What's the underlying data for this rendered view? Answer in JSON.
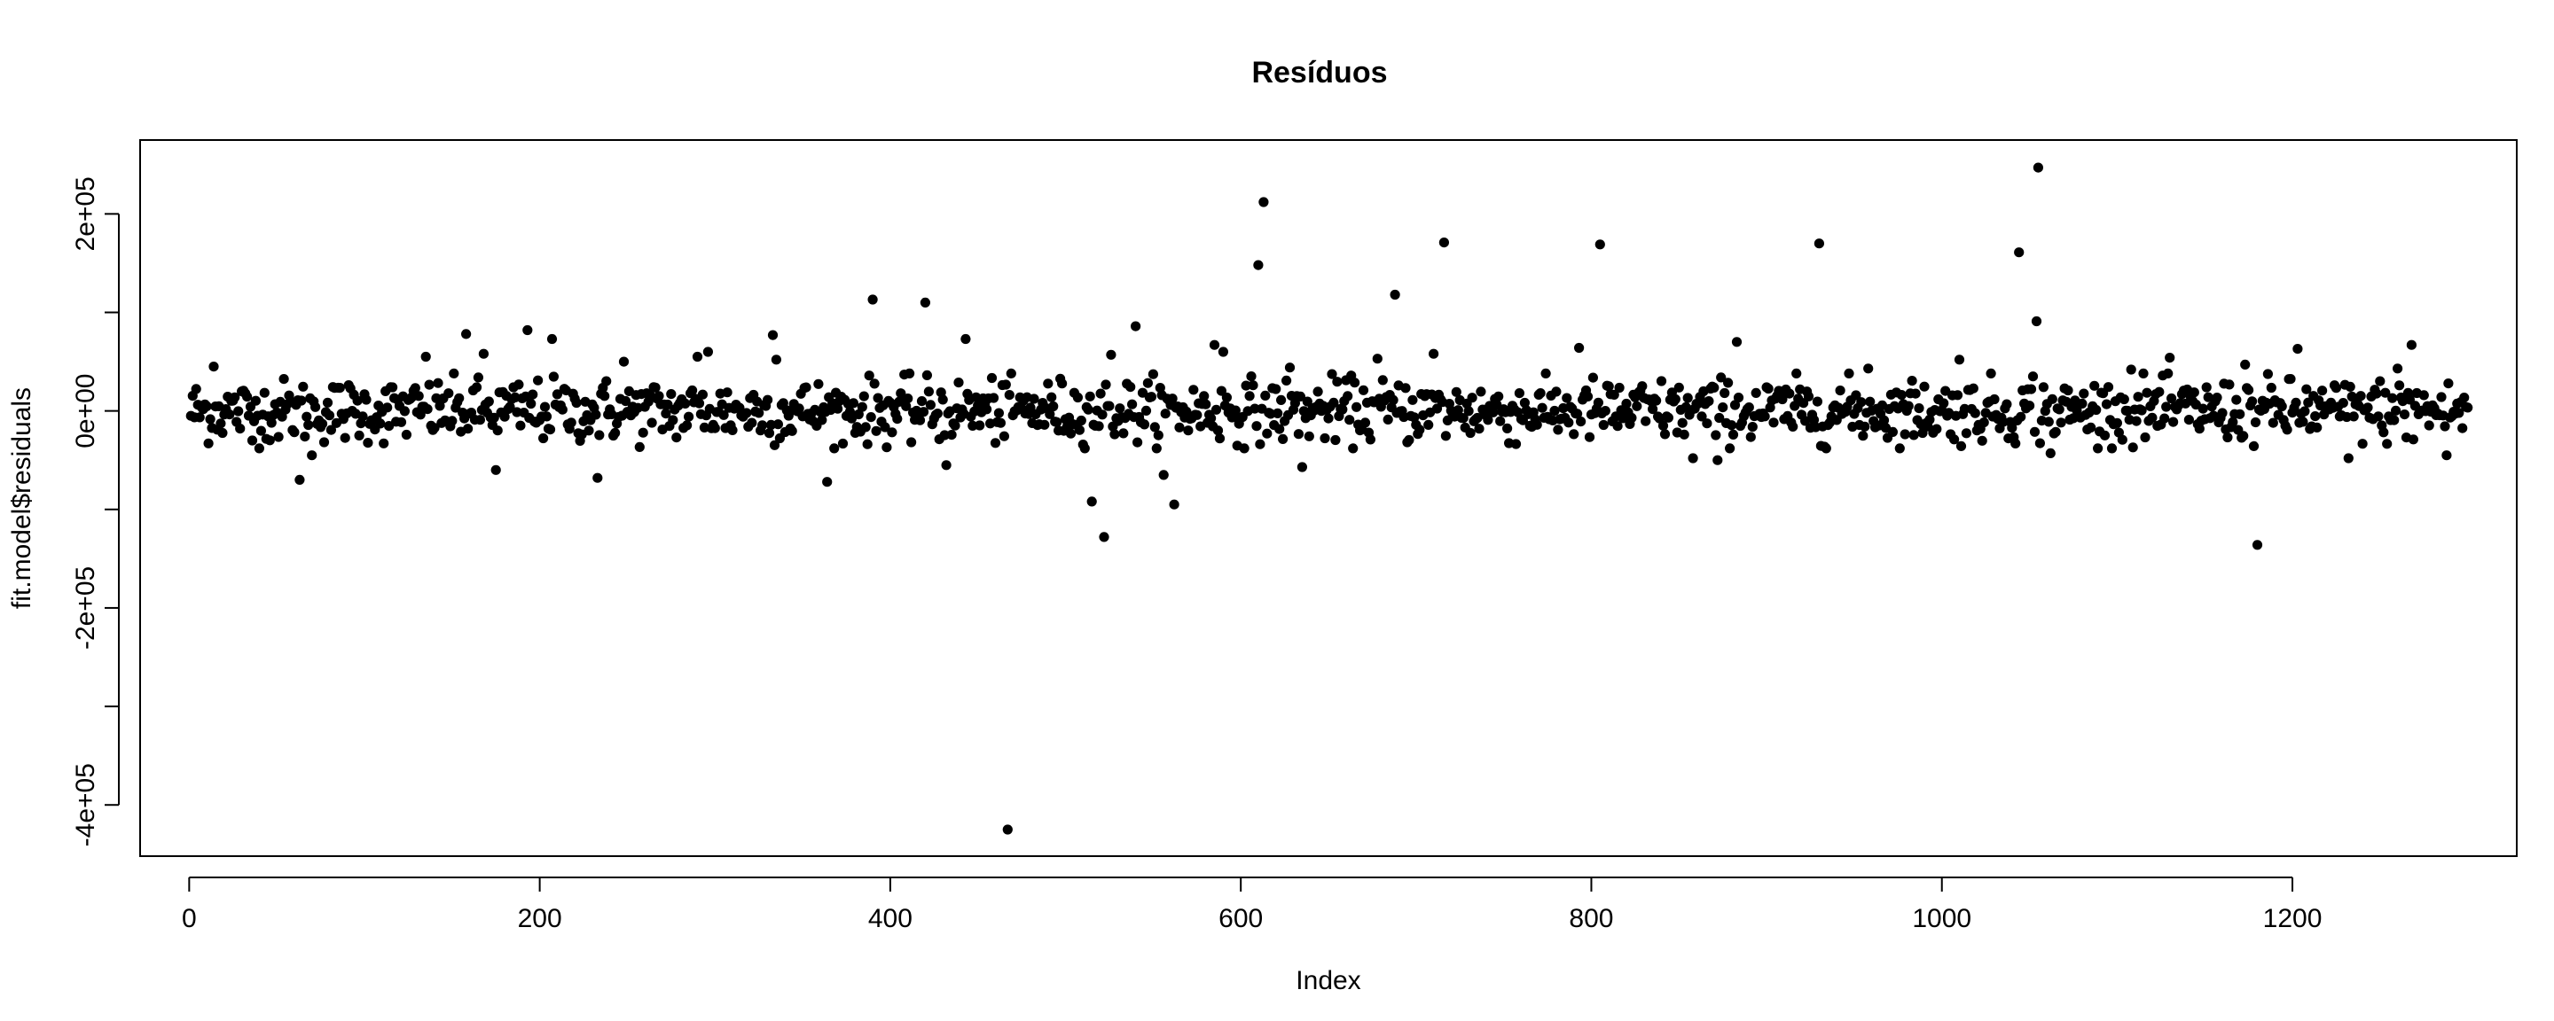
{
  "chart_data": {
    "type": "scatter",
    "title": "Resíduos",
    "xlabel": "Index",
    "ylabel": "fit.model$residuals",
    "xlim": [
      -28,
      1328
    ],
    "ylim": [
      -452000,
      275000
    ],
    "xticks": [
      0,
      200,
      400,
      600,
      800,
      1000,
      1200
    ],
    "xtick_labels": [
      "0",
      "200",
      "400",
      "600",
      "800",
      "1000",
      "1200"
    ],
    "yticks": [
      -400000,
      -200000,
      0,
      200000
    ],
    "ytick_labels": [
      "-4e+05",
      "-2e+05",
      "0e+00",
      "2e+05"
    ],
    "grid": false,
    "legend": "none",
    "point_color": "#000000",
    "n_points": 1300,
    "bulk_spread": 16000,
    "points": [
      {
        "x": 14,
        "y": 45000
      },
      {
        "x": 36,
        "y": -30000
      },
      {
        "x": 63,
        "y": -70000
      },
      {
        "x": 70,
        "y": -45000
      },
      {
        "x": 135,
        "y": 55000
      },
      {
        "x": 158,
        "y": 78000
      },
      {
        "x": 168,
        "y": 58000
      },
      {
        "x": 175,
        "y": -60000
      },
      {
        "x": 193,
        "y": 82000
      },
      {
        "x": 207,
        "y": 73000
      },
      {
        "x": 233,
        "y": -68000
      },
      {
        "x": 248,
        "y": 50000
      },
      {
        "x": 290,
        "y": 55000
      },
      {
        "x": 296,
        "y": 60000
      },
      {
        "x": 333,
        "y": 77000
      },
      {
        "x": 335,
        "y": 52000
      },
      {
        "x": 364,
        "y": -72000
      },
      {
        "x": 390,
        "y": 113000
      },
      {
        "x": 420,
        "y": 110000
      },
      {
        "x": 432,
        "y": -55000
      },
      {
        "x": 443,
        "y": 73000
      },
      {
        "x": 467,
        "y": -425000
      },
      {
        "x": 515,
        "y": -92000
      },
      {
        "x": 522,
        "y": -128000
      },
      {
        "x": 526,
        "y": 57000
      },
      {
        "x": 540,
        "y": 86000
      },
      {
        "x": 556,
        "y": -65000
      },
      {
        "x": 562,
        "y": -95000
      },
      {
        "x": 585,
        "y": 67000
      },
      {
        "x": 590,
        "y": 60000
      },
      {
        "x": 610,
        "y": 148000
      },
      {
        "x": 613,
        "y": 212000
      },
      {
        "x": 628,
        "y": 44000
      },
      {
        "x": 635,
        "y": -57000
      },
      {
        "x": 678,
        "y": 53000
      },
      {
        "x": 688,
        "y": 118000
      },
      {
        "x": 710,
        "y": 58000
      },
      {
        "x": 716,
        "y": 171000
      },
      {
        "x": 793,
        "y": 64000
      },
      {
        "x": 805,
        "y": 169000
      },
      {
        "x": 858,
        "y": -48000
      },
      {
        "x": 872,
        "y": -50000
      },
      {
        "x": 883,
        "y": 70000
      },
      {
        "x": 930,
        "y": 170000
      },
      {
        "x": 958,
        "y": 43000
      },
      {
        "x": 1010,
        "y": 52000
      },
      {
        "x": 1044,
        "y": 161000
      },
      {
        "x": 1052,
        "y": 35000
      },
      {
        "x": 1054,
        "y": 91000
      },
      {
        "x": 1055,
        "y": 247000
      },
      {
        "x": 1062,
        "y": -43000
      },
      {
        "x": 1108,
        "y": 42000
      },
      {
        "x": 1130,
        "y": 54000
      },
      {
        "x": 1173,
        "y": 47000
      },
      {
        "x": 1180,
        "y": -136000
      },
      {
        "x": 1203,
        "y": 63000
      },
      {
        "x": 1232,
        "y": -48000
      },
      {
        "x": 1260,
        "y": 43000
      },
      {
        "x": 1268,
        "y": 67000
      },
      {
        "x": 1288,
        "y": -45000
      }
    ]
  }
}
